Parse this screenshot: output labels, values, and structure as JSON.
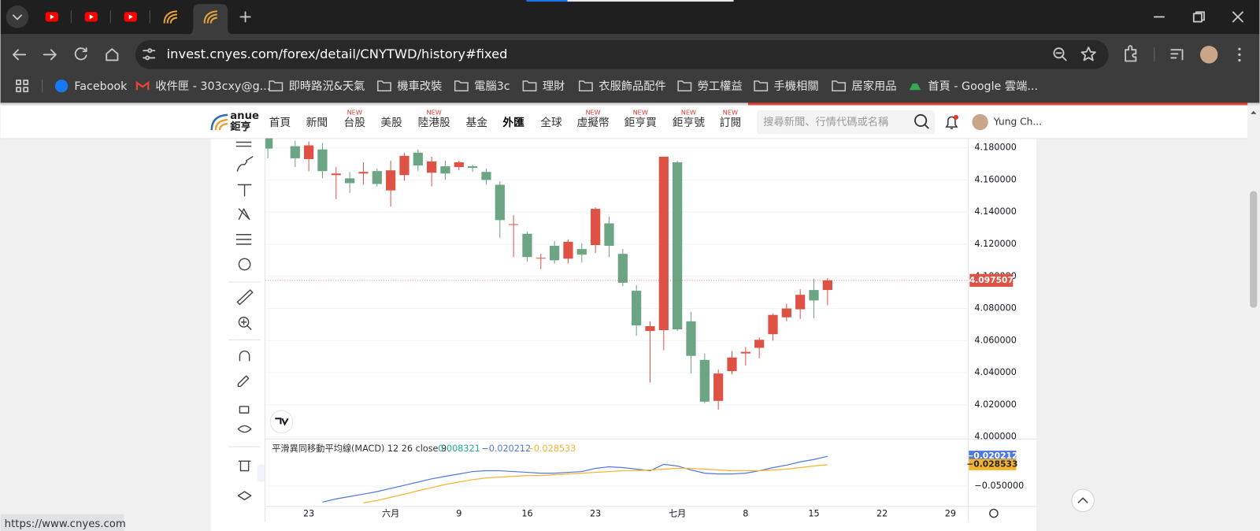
{
  "browser": {
    "url": "invest.cnyes.com/forex/detail/CNYTWD/history#fixed",
    "bookmarks": [
      "Facebook",
      "收件匣 - 303cxy@g...",
      "即時路況&天氣",
      "機車改裝",
      "電腦3c",
      "理財",
      "衣服飾品配件",
      "勞工權益",
      "手機相關",
      "居家用品",
      "首頁 - Google 雲端..."
    ],
    "status_url": "https://www.cnyes.com"
  },
  "site": {
    "logo": [
      "anue",
      "鉅亨"
    ],
    "nav": [
      {
        "label": "首頁"
      },
      {
        "label": "新聞"
      },
      {
        "label": "台股",
        "badge": "NEW"
      },
      {
        "label": "美股"
      },
      {
        "label": "陸港股",
        "badge": "NEW"
      },
      {
        "label": "基金"
      },
      {
        "label": "外匯"
      },
      {
        "label": "全球"
      },
      {
        "label": "虛擬幣",
        "badge": "NEW"
      },
      {
        "label": "鉅亨買",
        "badge": "NEW"
      },
      {
        "label": "鉅亨號",
        "badge": "NEW"
      },
      {
        "label": "訂閱",
        "badge": "NEW"
      }
    ],
    "search_placeholder": "搜尋新聞、行情代碼或名稱",
    "user": "Yung Ch..."
  },
  "chart_data": [
    {
      "type": "candlestick",
      "categories": [
        null,
        null,
        null,
        "23",
        null,
        null,
        null,
        null,
        null,
        "六月",
        null,
        null,
        null,
        null,
        "9",
        null,
        null,
        null,
        null,
        "16",
        null,
        null,
        null,
        null,
        "23",
        null,
        null,
        null,
        null,
        null,
        "七月",
        null,
        null,
        null,
        null,
        "8",
        null,
        null,
        null,
        null,
        "15",
        null,
        null,
        null,
        null,
        "22",
        null,
        null,
        null,
        null,
        "29",
        null
      ],
      "open": [
        4.186,
        null,
        4.181,
        4.173,
        4.179,
        4.163,
        4.161,
        4.164,
        4.1655,
        4.1535,
        4.163,
        4.177,
        4.1645,
        4.1685,
        4.168,
        4.1685,
        4.165,
        4.157,
        4.132,
        4.1265,
        4.111,
        4.119,
        4.111,
        4.117,
        4.1195,
        4.133,
        4.114,
        4.091,
        4.066,
        4.0665,
        4.171,
        4.072,
        4.048,
        4.0225,
        4.041,
        4.052,
        4.0555,
        4.064,
        4.0745,
        4.0795,
        4.0915,
        4.0915,
        null,
        null,
        null,
        null,
        null,
        null,
        null,
        null,
        null,
        null
      ],
      "high": [
        4.186,
        null,
        4.1845,
        4.184,
        4.183,
        4.168,
        4.165,
        4.171,
        4.167,
        4.172,
        4.177,
        4.179,
        4.1745,
        4.172,
        4.172,
        4.1695,
        4.167,
        4.159,
        4.138,
        4.128,
        4.114,
        4.122,
        4.123,
        4.1205,
        4.143,
        4.137,
        4.117,
        4.0945,
        4.072,
        4.1745,
        4.172,
        4.078,
        4.052,
        4.042,
        4.0535,
        4.056,
        4.062,
        4.077,
        4.083,
        4.092,
        4.0985,
        4.099,
        null,
        null,
        null,
        null,
        null,
        null,
        null,
        null,
        null,
        null
      ],
      "low": [
        4.1735,
        null,
        4.168,
        4.1655,
        4.161,
        4.148,
        4.152,
        4.157,
        4.156,
        4.1435,
        4.1595,
        4.1655,
        4.156,
        4.16,
        4.166,
        4.165,
        4.157,
        4.124,
        4.112,
        4.109,
        4.1045,
        4.108,
        4.108,
        4.1085,
        4.1145,
        4.112,
        4.094,
        4.063,
        4.034,
        4.054,
        4.066,
        4.0395,
        4.021,
        4.017,
        4.039,
        4.0445,
        4.049,
        4.06,
        4.072,
        4.0735,
        4.074,
        4.082,
        null,
        null,
        null,
        null,
        null,
        null,
        null,
        null,
        null,
        null
      ],
      "close": [
        4.1795,
        null,
        4.1735,
        4.1815,
        4.1655,
        4.164,
        4.158,
        4.165,
        4.1575,
        4.166,
        4.175,
        4.169,
        4.1715,
        4.164,
        4.171,
        4.1675,
        4.16,
        4.135,
        4.1325,
        4.112,
        4.1115,
        4.11,
        4.1215,
        4.1135,
        4.142,
        4.119,
        4.096,
        4.0695,
        4.069,
        4.1745,
        4.067,
        4.0505,
        4.022,
        4.0395,
        4.0495,
        4.053,
        4.0605,
        4.076,
        4.08,
        4.0885,
        4.085,
        4.0975,
        null,
        null,
        null,
        null,
        null,
        null,
        null,
        null,
        null,
        null
      ],
      "up_color": "#de5246",
      "down_color": "#6ba583",
      "last": 4.097507,
      "ylim": [
        3.9995,
        4.186
      ],
      "yticks": [
        {
          "value": 4.0,
          "label": "4.000000"
        },
        {
          "value": 4.02,
          "label": "4.020000"
        },
        {
          "value": 4.04,
          "label": "4.040000"
        },
        {
          "value": 4.06,
          "label": "4.060000"
        },
        {
          "value": 4.08,
          "label": "4.080000"
        },
        {
          "value": 4.1,
          "label": "4.100000"
        },
        {
          "value": 4.12,
          "label": "4.120000"
        },
        {
          "value": 4.14,
          "label": "4.140000"
        },
        {
          "value": 4.16,
          "label": "4.160000"
        },
        {
          "value": 4.18,
          "label": "4.180000"
        }
      ],
      "grid": true
    },
    {
      "type": "line",
      "title": "平滑異同移動平均線(MACD) 12 26 close 9",
      "histogram_last": 0.008321,
      "histogram_color": "#22ab94",
      "series": [
        {
          "color": "#4f78dc",
          "last": {
            "value": -0.020212,
            "label": "−0.020212"
          },
          "values": [
            null,
            null,
            null,
            null,
            -0.0661,
            -0.0629,
            -0.0605,
            -0.0581,
            -0.0556,
            -0.0524,
            -0.0492,
            -0.046,
            -0.0428,
            -0.0403,
            -0.0379,
            -0.0355,
            -0.0347,
            -0.0347,
            -0.0355,
            -0.0363,
            -0.0371,
            -0.0371,
            -0.0363,
            -0.0355,
            -0.0323,
            -0.0307,
            -0.0315,
            -0.0331,
            -0.0347,
            -0.0283,
            -0.0299,
            -0.0339,
            -0.0371,
            -0.0379,
            -0.0379,
            -0.0371,
            -0.0347,
            -0.0315,
            -0.0291,
            -0.0258,
            -0.0234,
            -0.020212,
            null,
            null,
            null,
            null,
            null,
            null,
            null,
            null,
            null,
            null
          ]
        },
        {
          "color": "#f3b42f",
          "last": {
            "value": -0.028533,
            "label": "−0.028533"
          },
          "values": [
            null,
            null,
            null,
            null,
            null,
            null,
            null,
            -0.0669,
            -0.0645,
            -0.0613,
            -0.0581,
            -0.0548,
            -0.0516,
            -0.0484,
            -0.046,
            -0.0436,
            -0.0419,
            -0.0411,
            -0.0403,
            -0.0395,
            -0.0395,
            -0.0387,
            -0.0379,
            -0.0371,
            -0.0363,
            -0.0355,
            -0.0347,
            -0.0347,
            -0.0339,
            -0.0331,
            -0.0323,
            -0.0323,
            -0.0331,
            -0.0339,
            -0.0347,
            -0.0347,
            -0.0347,
            -0.0339,
            -0.0331,
            -0.0315,
            -0.0299,
            -0.028533,
            null,
            null,
            null,
            null,
            null,
            null,
            null,
            null,
            null,
            null
          ]
        }
      ],
      "ylim": [
        -0.0701,
        -0.0033
      ],
      "yticks": [
        {
          "value": -0.05,
          "label": "−0.050000"
        }
      ]
    }
  ]
}
